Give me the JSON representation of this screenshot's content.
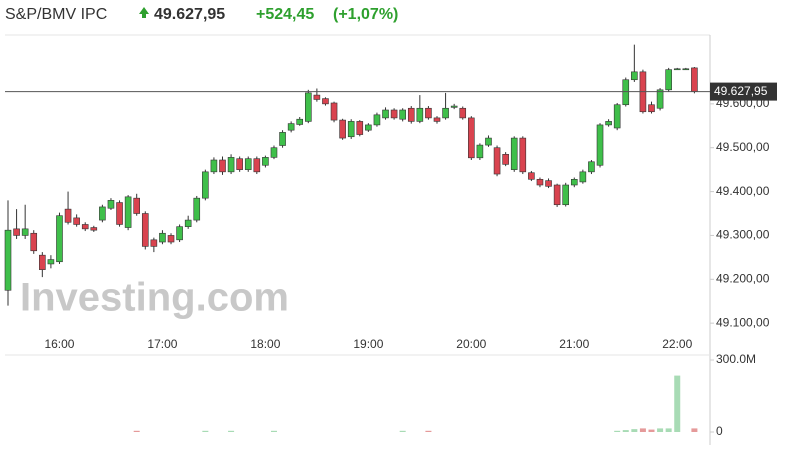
{
  "header": {
    "name": "S&P/BMV IPC",
    "price": "49.627,95",
    "change": "+524,45",
    "change_pct": "(+1,07%)"
  },
  "chart_data": {
    "type": "candlestick",
    "watermark": "Investing.com",
    "categories": [
      null,
      null,
      null,
      null,
      null,
      null,
      "16:00",
      null,
      null,
      null,
      null,
      null,
      null,
      null,
      null,
      null,
      null,
      null,
      "17:00",
      null,
      null,
      null,
      null,
      null,
      null,
      null,
      null,
      null,
      null,
      null,
      "18:00",
      null,
      null,
      null,
      null,
      null,
      null,
      null,
      null,
      null,
      null,
      null,
      "19:00",
      null,
      null,
      null,
      null,
      null,
      null,
      null,
      null,
      null,
      null,
      null,
      "20:00",
      null,
      null,
      null,
      null,
      null,
      null,
      null,
      null,
      null,
      null,
      null,
      "21:00",
      null,
      null,
      null,
      null,
      null,
      null,
      null,
      null,
      null,
      null,
      null,
      "22:00",
      null,
      null
    ],
    "open": [
      49175,
      49315,
      49300,
      49305,
      49255,
      49235,
      49240,
      49360,
      49340,
      49325,
      49318,
      49335,
      49362,
      49375,
      49318,
      49385,
      49350,
      49290,
      49285,
      49300,
      49290,
      49320,
      49335,
      49385,
      49445,
      49472,
      49445,
      49475,
      49450,
      49475,
      49460,
      49478,
      49505,
      49540,
      49553,
      49560,
      49620,
      49612,
      49602,
      49563,
      49525,
      49560,
      49540,
      49552,
      49568,
      49586,
      49565,
      49590,
      49560,
      49590,
      49568,
      49568,
      49592,
      49590,
      49568,
      49477,
      49506,
      49500,
      49485,
      49450,
      49522,
      49443,
      49428,
      49425,
      49415,
      49370,
      49415,
      49422,
      49445,
      49460,
      49552,
      49545,
      49598,
      49655,
      49673,
      49598,
      49590,
      49632,
      49680,
      49680,
      49682
    ],
    "high": [
      49380,
      49360,
      49370,
      49312,
      49262,
      49255,
      49352,
      49400,
      49348,
      49330,
      49322,
      49370,
      49385,
      49380,
      49392,
      49395,
      49355,
      49295,
      49312,
      49305,
      49325,
      49345,
      49390,
      49450,
      49478,
      49480,
      49485,
      49480,
      49480,
      49480,
      49482,
      49505,
      49540,
      49560,
      49570,
      49632,
      49635,
      49615,
      49605,
      49566,
      49565,
      49563,
      49556,
      49580,
      49592,
      49590,
      49590,
      49595,
      49620,
      49595,
      49572,
      49625,
      49600,
      49594,
      49572,
      49510,
      49528,
      49505,
      49490,
      49526,
      49526,
      49447,
      49432,
      49430,
      49418,
      49420,
      49432,
      49450,
      49472,
      49556,
      49565,
      49602,
      49660,
      49735,
      49678,
      49605,
      49636,
      49682,
      49682,
      49682,
      49684
    ],
    "low": [
      49140,
      49292,
      49292,
      49258,
      49205,
      49225,
      49235,
      49325,
      49320,
      49310,
      49308,
      49330,
      49358,
      49320,
      49312,
      49345,
      49268,
      49262,
      49280,
      49280,
      49285,
      49315,
      49330,
      49380,
      49440,
      49438,
      49440,
      49445,
      49445,
      49440,
      49455,
      49474,
      49500,
      49535,
      49550,
      49556,
      49605,
      49596,
      49558,
      49518,
      49520,
      49526,
      49536,
      49548,
      49564,
      49564,
      49560,
      49555,
      49556,
      49564,
      49555,
      49564,
      49588,
      49564,
      49472,
      49472,
      49502,
      49435,
      49458,
      49445,
      49440,
      49424,
      49410,
      49408,
      49365,
      49366,
      49410,
      49418,
      49440,
      49455,
      49548,
      49540,
      49594,
      49650,
      49578,
      49578,
      49585,
      49628,
      49678,
      49678,
      49624
    ],
    "close": [
      49312,
      49300,
      49315,
      49265,
      49222,
      49245,
      49345,
      49330,
      49325,
      49315,
      49312,
      49365,
      49380,
      49325,
      49388,
      49350,
      49275,
      49275,
      49305,
      49285,
      49320,
      49335,
      49385,
      49445,
      49472,
      49445,
      49478,
      49450,
      49475,
      49445,
      49478,
      49500,
      49535,
      49555,
      49565,
      49625,
      49610,
      49600,
      49563,
      49522,
      49560,
      49530,
      49552,
      49575,
      49586,
      49568,
      49586,
      49560,
      49590,
      49568,
      49560,
      49590,
      49595,
      49568,
      49477,
      49506,
      49522,
      49440,
      49462,
      49522,
      49445,
      49428,
      49415,
      49412,
      49370,
      49415,
      49428,
      49445,
      49468,
      49552,
      49560,
      49598,
      49655,
      49673,
      49582,
      49582,
      49632,
      49678,
      49680,
      49680,
      49628
    ],
    "volume": [
      0,
      0,
      0,
      0,
      0,
      0,
      0,
      0,
      0,
      0,
      0,
      0,
      0,
      0,
      0,
      5000000,
      0,
      0,
      0,
      0,
      0,
      0,
      0,
      5000000,
      0,
      0,
      5000000,
      0,
      0,
      0,
      0,
      5000000,
      0,
      0,
      0,
      0,
      0,
      0,
      0,
      0,
      0,
      0,
      0,
      0,
      0,
      0,
      5000000,
      0,
      0,
      5000000,
      0,
      0,
      0,
      0,
      0,
      0,
      0,
      0,
      0,
      0,
      0,
      0,
      0,
      0,
      0,
      0,
      0,
      0,
      0,
      0,
      0,
      5000000,
      8000000,
      12000000,
      15000000,
      10000000,
      15000000,
      15000000,
      235000000,
      0,
      15000000
    ],
    "up_color": "#3fbf4a",
    "down_color": "#d9434f",
    "volume_up_color": "#a8dbb5",
    "volume_down_color": "#e59a9a",
    "ylim": [
      49073,
      49757
    ],
    "yticks": [
      {
        "value": 49100,
        "label": "49.100,00"
      },
      {
        "value": 49200,
        "label": "49.200,00"
      },
      {
        "value": 49300,
        "label": "49.300,00"
      },
      {
        "value": 49400,
        "label": "49.400,00"
      },
      {
        "value": 49500,
        "label": "49.500,00"
      },
      {
        "value": 49600,
        "label": "49.600,00"
      }
    ],
    "volume_lim": [
      0,
      300000000
    ],
    "volume_ticks": [
      0,
      {
        "value": 300000000,
        "label": "300.0M"
      }
    ],
    "last_value": {
      "value": 49627.95,
      "label": "49.627,95"
    }
  }
}
